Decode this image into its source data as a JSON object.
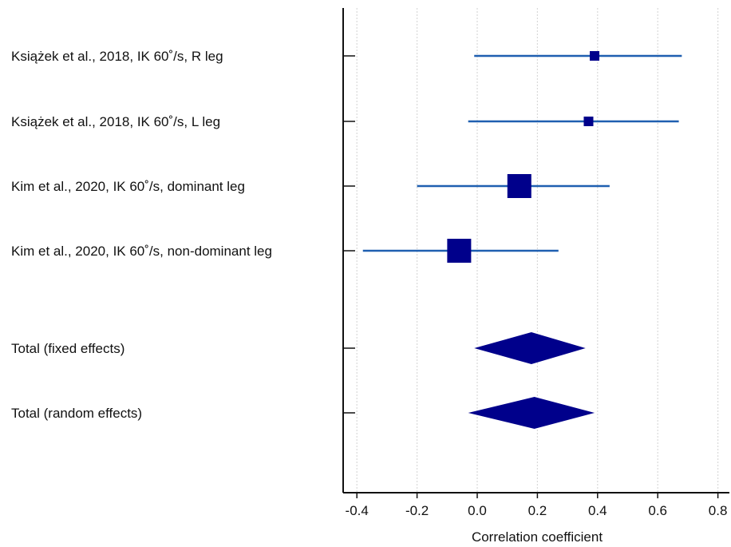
{
  "chart_data": {
    "type": "forest",
    "xlabel": "Correlation coefficient",
    "xlim": [
      -0.42,
      0.84
    ],
    "xticks": [
      "-0.4",
      "-0.2",
      "0.0",
      "0.2",
      "0.4",
      "0.6",
      "0.8"
    ],
    "xtick_values": [
      -0.4,
      -0.2,
      0.0,
      0.2,
      0.4,
      0.6,
      0.8
    ],
    "grid": "vertical dashed",
    "marker_color": "#00008b",
    "ci_color": "#1f5fb0",
    "studies": [
      {
        "label": "Książek et al., 2018, IK 60˚/s, R leg",
        "estimate": 0.39,
        "ci_low": -0.01,
        "ci_high": 0.68,
        "weight": 1
      },
      {
        "label": "Książek et al., 2018, IK 60˚/s, L leg",
        "estimate": 0.37,
        "ci_low": -0.03,
        "ci_high": 0.67,
        "weight": 1
      },
      {
        "label": "Kim et al., 2020, IK 60˚/s, dominant leg",
        "estimate": 0.14,
        "ci_low": -0.2,
        "ci_high": 0.44,
        "weight": 3
      },
      {
        "label": "Kim et al., 2020, IK 60˚/s, non-dominant leg",
        "estimate": -0.06,
        "ci_low": -0.38,
        "ci_high": 0.27,
        "weight": 3
      }
    ],
    "pooled": [
      {
        "label": "Total (fixed effects)",
        "estimate": 0.18,
        "ci_low": -0.01,
        "ci_high": 0.36
      },
      {
        "label": "Total (random effects)",
        "estimate": 0.19,
        "ci_low": -0.03,
        "ci_high": 0.39
      }
    ]
  }
}
